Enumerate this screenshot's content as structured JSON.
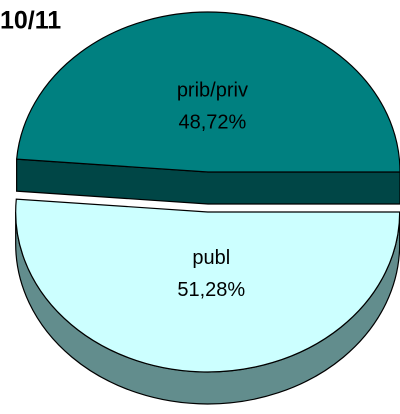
{
  "chart_data": {
    "type": "pie",
    "title": "10/11",
    "categories": [
      "prib/priv",
      "publ"
    ],
    "values": [
      48.72,
      51.28
    ],
    "value_labels": [
      "48,72%",
      "51,28%"
    ],
    "colors": [
      "#008080",
      "#ccffff"
    ]
  }
}
